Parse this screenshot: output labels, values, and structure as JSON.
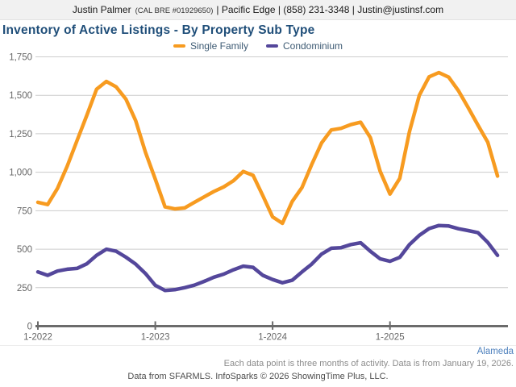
{
  "header": {
    "agent_name": "Justin Palmer",
    "license": "(CAL BRE #01929650)",
    "details": "| Pacific Edge | (858) 231-3348 | Justin@justinsf.com"
  },
  "title": "Inventory of Active Listings - By Property Sub Type",
  "region_label": "Alameda",
  "footnote": "Each data point is three months of activity. Data is from January 19, 2026.",
  "credit": "Data from SFARMLS. InfoSparks © 2026 ShowingTime Plus, LLC.",
  "colors": {
    "single_family": "#f79b20",
    "condominium": "#54479b",
    "title_blue": "#1f4e79",
    "region_blue": "#4f81bd",
    "gridline": "#cccccc",
    "axis": "#6b6b6b",
    "axis_text": "#666666",
    "header_bg": "#f1f1f1"
  },
  "chart_data": {
    "type": "line",
    "title": "Inventory of Active Listings - By Property Sub Type",
    "legend_position": "top",
    "grid": true,
    "ylim": [
      0,
      1750
    ],
    "y_ticks": [
      {
        "label": "0",
        "value": 0
      },
      {
        "label": "250",
        "value": 250
      },
      {
        "label": "500",
        "value": 500
      },
      {
        "label": "750",
        "value": 750
      },
      {
        "label": "1,000",
        "value": 1000
      },
      {
        "label": "1,250",
        "value": 1250
      },
      {
        "label": "1,500",
        "value": 1500
      },
      {
        "label": "1,750",
        "value": 1750
      }
    ],
    "x_ticks": [
      {
        "label": "1-2022",
        "index": 0
      },
      {
        "label": "1-2023",
        "index": 12
      },
      {
        "label": "1-2024",
        "index": 24
      },
      {
        "label": "1-2025",
        "index": 36
      }
    ],
    "x": [
      "1-2022",
      "2-2022",
      "3-2022",
      "4-2022",
      "5-2022",
      "6-2022",
      "7-2022",
      "8-2022",
      "9-2022",
      "10-2022",
      "11-2022",
      "12-2022",
      "1-2023",
      "2-2023",
      "3-2023",
      "4-2023",
      "5-2023",
      "6-2023",
      "7-2023",
      "8-2023",
      "9-2023",
      "10-2023",
      "11-2023",
      "12-2023",
      "1-2024",
      "2-2024",
      "3-2024",
      "4-2024",
      "5-2024",
      "6-2024",
      "7-2024",
      "8-2024",
      "9-2024",
      "10-2024",
      "11-2024",
      "12-2024",
      "1-2025",
      "2-2025",
      "3-2025",
      "4-2025",
      "5-2025",
      "6-2025",
      "7-2025",
      "8-2025",
      "9-2025",
      "10-2025",
      "11-2025",
      "12-2025"
    ],
    "series": [
      {
        "name": "Single Family",
        "color": "#f79b20",
        "values": [
          805,
          790,
          895,
          1040,
          1205,
          1370,
          1540,
          1590,
          1555,
          1475,
          1335,
          1130,
          955,
          775,
          762,
          768,
          805,
          840,
          875,
          905,
          945,
          1005,
          980,
          848,
          710,
          668,
          810,
          900,
          1050,
          1190,
          1275,
          1285,
          1310,
          1325,
          1225,
          1005,
          858,
          960,
          1265,
          1500,
          1620,
          1648,
          1618,
          1530,
          1420,
          1305,
          1195,
          975
        ]
      },
      {
        "name": "Condominium",
        "color": "#54479b",
        "values": [
          352,
          330,
          358,
          370,
          375,
          405,
          460,
          500,
          487,
          448,
          403,
          342,
          265,
          232,
          237,
          250,
          266,
          291,
          318,
          338,
          366,
          390,
          382,
          330,
          303,
          282,
          298,
          352,
          403,
          468,
          506,
          510,
          530,
          542,
          486,
          437,
          421,
          447,
          530,
          590,
          634,
          654,
          651,
          633,
          621,
          607,
          544,
          460
        ]
      }
    ]
  }
}
